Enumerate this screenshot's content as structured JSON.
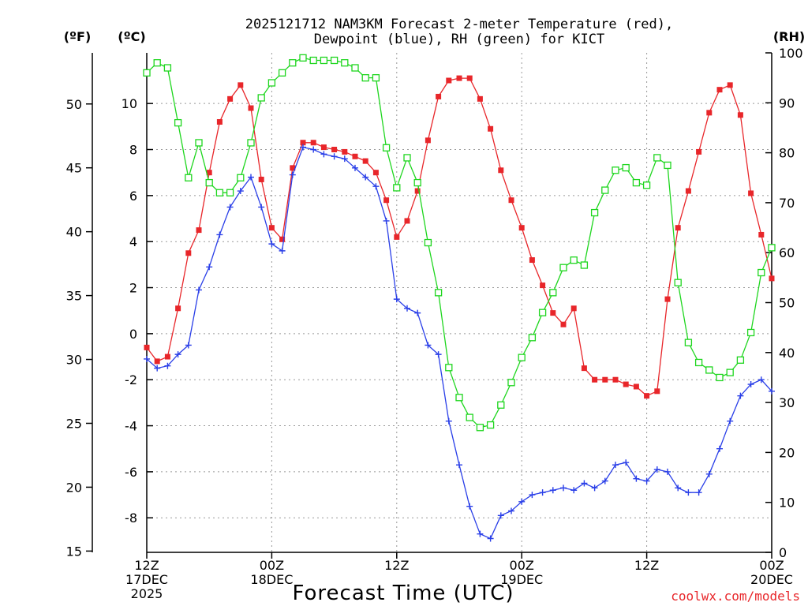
{
  "chart_data": {
    "type": "line",
    "title": [
      "2025121712 NAM3KM Forecast 2-meter Temperature (red),",
      "Dewpoint (blue), RH (green) for KICT"
    ],
    "xlabel": "Forecast Time (UTC)",
    "credit": "coolwx.com/models",
    "units": {
      "fahrenheit": "(ºF)",
      "celsius": "(ºC)",
      "rh": "(RH)"
    },
    "x_hours_range": [
      0,
      60
    ],
    "celsius_range": [
      -9.5,
      12.2
    ],
    "fahrenheit_range": [
      14.9,
      54.0
    ],
    "rh_range": [
      0,
      100
    ],
    "celsius_ticks": [
      -8,
      -6,
      -4,
      -2,
      0,
      2,
      4,
      6,
      8,
      10
    ],
    "fahrenheit_ticks": [
      15,
      20,
      25,
      30,
      35,
      40,
      45,
      50
    ],
    "rh_ticks": [
      0,
      10,
      20,
      30,
      40,
      50,
      60,
      70,
      80,
      90,
      100
    ],
    "x_ticks": [
      {
        "hour": 0,
        "lines": [
          "12Z",
          "17DEC",
          "2025"
        ]
      },
      {
        "hour": 12,
        "lines": [
          "00Z",
          "18DEC"
        ]
      },
      {
        "hour": 24,
        "lines": [
          "12Z"
        ]
      },
      {
        "hour": 36,
        "lines": [
          "00Z",
          "19DEC"
        ]
      },
      {
        "hour": 48,
        "lines": [
          "12Z"
        ]
      },
      {
        "hour": 60,
        "lines": [
          "00Z",
          "20DEC"
        ]
      }
    ],
    "series": [
      {
        "name": "Temperature",
        "unit": "C",
        "color": "#e8262a",
        "marker": "filled-square",
        "values": [
          -0.6,
          -1.2,
          -1.0,
          1.1,
          3.5,
          4.5,
          7.0,
          9.2,
          10.2,
          10.8,
          9.8,
          6.7,
          4.6,
          4.1,
          7.2,
          8.3,
          8.3,
          8.1,
          8.0,
          7.9,
          7.7,
          7.5,
          7.0,
          5.8,
          4.2,
          4.9,
          6.2,
          8.4,
          10.3,
          11.0,
          11.1,
          11.1,
          10.2,
          8.9,
          7.1,
          5.8,
          4.6,
          3.2,
          2.1,
          0.9,
          0.4,
          1.1,
          -1.5,
          -2.0,
          -2.0,
          -2.0,
          -2.2,
          -2.3,
          -2.7,
          -2.5,
          1.5,
          4.6,
          6.2,
          7.9,
          9.6,
          10.6,
          10.8,
          9.5,
          6.1,
          4.3,
          2.4
        ]
      },
      {
        "name": "Dewpoint",
        "unit": "C",
        "color": "#2a3fe8",
        "marker": "plus",
        "values": [
          -1.1,
          -1.5,
          -1.4,
          -0.9,
          -0.5,
          1.9,
          2.9,
          4.3,
          5.5,
          6.2,
          6.8,
          5.5,
          3.9,
          3.6,
          6.9,
          8.1,
          8.0,
          7.8,
          7.7,
          7.6,
          7.2,
          6.8,
          6.4,
          4.9,
          1.5,
          1.1,
          0.9,
          -0.5,
          -0.9,
          -3.8,
          -5.7,
          -7.5,
          -8.7,
          -8.9,
          -7.9,
          -7.7,
          -7.3,
          -7.0,
          -6.9,
          -6.8,
          -6.7,
          -6.8,
          -6.5,
          -6.7,
          -6.4,
          -5.7,
          -5.6,
          -6.3,
          -6.4,
          -5.9,
          -6.0,
          -6.7,
          -6.9,
          -6.9,
          -6.1,
          -5.0,
          -3.8,
          -2.7,
          -2.2,
          -2.0,
          -2.5
        ]
      },
      {
        "name": "RH",
        "unit": "%",
        "color": "#1ed61e",
        "marker": "open-square",
        "values": [
          96,
          98,
          97,
          86,
          75,
          82,
          74,
          72,
          72,
          75,
          82,
          91,
          94,
          96,
          98,
          99,
          98.5,
          98.5,
          98.5,
          98,
          97,
          95,
          95,
          81,
          73,
          79,
          74,
          62,
          52,
          37,
          31,
          27,
          25,
          25.5,
          29.5,
          34,
          39,
          43,
          48,
          52,
          57,
          58.5,
          57.5,
          68,
          72.5,
          76.5,
          77,
          74,
          73.5,
          79,
          77.5,
          54,
          42,
          38,
          36.5,
          35,
          36,
          38.5,
          44,
          56,
          61
        ]
      }
    ]
  }
}
